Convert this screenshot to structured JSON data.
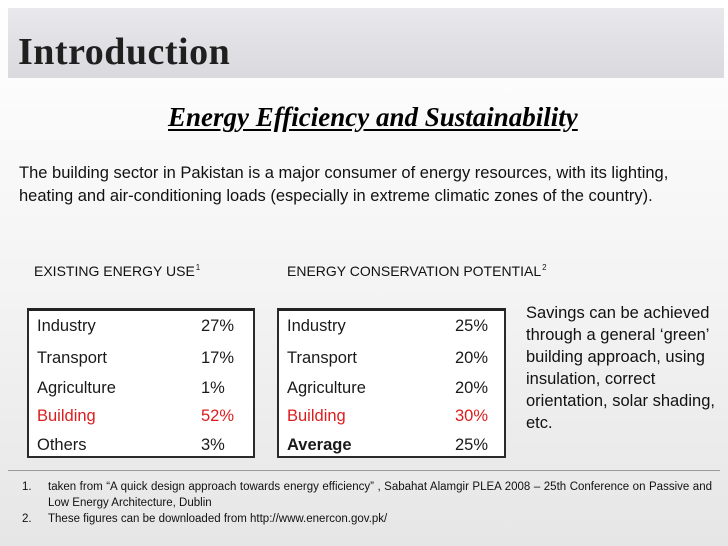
{
  "slide": {
    "title": "Introduction",
    "subtitle": "Energy Efficiency and Sustainability",
    "intro": "The building sector in Pakistan is a major consumer of energy resources, with its lighting, heating and air-conditioning loads (especially in extreme climatic zones of the country)."
  },
  "existing": {
    "label": "EXISTING ENERGY USE",
    "ref": "1",
    "rows": [
      {
        "sector": "Industry",
        "value": "27%"
      },
      {
        "sector": "Transport",
        "value": "17%"
      },
      {
        "sector": "Agriculture",
        "value": "1%"
      },
      {
        "sector": "Building",
        "value": "52%"
      },
      {
        "sector": "Others",
        "value": "3%"
      }
    ]
  },
  "conservation": {
    "label": "ENERGY CONSERVATION POTENTIAL",
    "ref": "2",
    "rows": [
      {
        "sector": "Industry",
        "value": "25%"
      },
      {
        "sector": "Transport",
        "value": "20%"
      },
      {
        "sector": "Agriculture",
        "value": "20%"
      },
      {
        "sector": "Building",
        "value": "30%"
      },
      {
        "sector": "Average",
        "value": "25%"
      }
    ]
  },
  "savings": "Savings can be achieved through a general ‘green’ building approach, using insulation, correct orientation, solar shading, etc.",
  "references": [
    {
      "num": "1.",
      "text": "taken from “A quick design approach towards energy efficiency” , Sabahat Alamgir PLEA 2008 – 25th Conference on Passive and Low Energy Architecture, Dublin"
    },
    {
      "num": "2.",
      "text": "These figures can be downloaded from http://www.enercon.gov.pk/"
    }
  ],
  "colors": {
    "highlight": "#dd1d1d"
  }
}
